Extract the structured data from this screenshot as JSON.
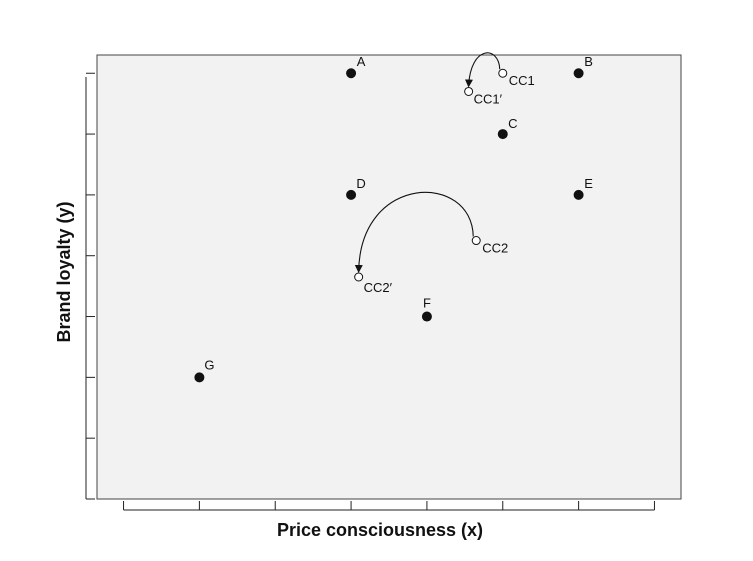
{
  "chart_data": {
    "type": "scatter",
    "xlabel": "Price consciousness (x)",
    "ylabel": "Brand loyalty (y)",
    "xlim": [
      0.65,
      8.35
    ],
    "ylim": [
      0,
      7.3
    ],
    "tick_labels_printed": false,
    "grid": false,
    "background": "#f2f2f2",
    "points": [
      {
        "label": "A",
        "x": 4,
        "y": 7,
        "style": "filled"
      },
      {
        "label": "B",
        "x": 7,
        "y": 7,
        "style": "filled"
      },
      {
        "label": "C",
        "x": 6,
        "y": 6,
        "style": "filled"
      },
      {
        "label": "D",
        "x": 4,
        "y": 5,
        "style": "filled"
      },
      {
        "label": "E",
        "x": 7,
        "y": 5,
        "style": "filled"
      },
      {
        "label": "F",
        "x": 5,
        "y": 3,
        "style": "filled"
      },
      {
        "label": "G",
        "x": 2,
        "y": 2,
        "style": "filled"
      },
      {
        "label": "CC1",
        "x": 6.0,
        "y": 7.0,
        "style": "open"
      },
      {
        "label": "CC1′",
        "x": 5.55,
        "y": 6.7,
        "style": "open"
      },
      {
        "label": "CC2",
        "x": 5.65,
        "y": 4.25,
        "style": "open"
      },
      {
        "label": "CC2′",
        "x": 4.1,
        "y": 3.65,
        "style": "open"
      }
    ],
    "arrows": [
      {
        "from": "CC1",
        "to": "CC1′"
      },
      {
        "from": "CC2",
        "to": "CC2′"
      }
    ]
  }
}
